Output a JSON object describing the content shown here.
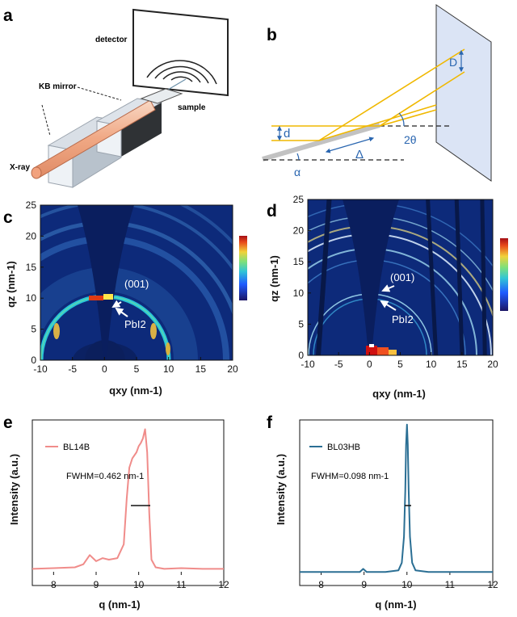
{
  "panel_a": {
    "label": "a",
    "detector": "detector",
    "kb_mirror": "KB mirror",
    "sample": "sample",
    "xray": "X-ray"
  },
  "panel_b": {
    "label": "b",
    "D": "D",
    "d": "d",
    "delta": "Δ",
    "two_theta": "2θ",
    "alpha": "α"
  },
  "panel_c": {
    "label": "c",
    "ylabel": "qz (nm-1)",
    "xlabel": "qxy (nm-1)",
    "x_ticks": [
      "-10",
      "-5",
      "0",
      "5",
      "10",
      "15",
      "20"
    ],
    "y_ticks": [
      "0",
      "5",
      "10",
      "15",
      "20",
      "25"
    ],
    "annot_001": "(001)",
    "annot_pbi2": "PbI2"
  },
  "panel_d": {
    "label": "d",
    "ylabel": "qz (nm-1)",
    "xlabel": "qxy (nm-1)",
    "x_ticks": [
      "-10",
      "-5",
      "0",
      "5",
      "10",
      "15",
      "20"
    ],
    "y_ticks": [
      "0",
      "5",
      "10",
      "15",
      "20",
      "25"
    ],
    "annot_001": "(001)",
    "annot_pbi2": "PbI2"
  },
  "chart_data": [
    {
      "panel": "e",
      "type": "line",
      "xlabel": "q (nm-1)",
      "ylabel": "Intensity (a.u.)",
      "xlim": [
        7.5,
        12
      ],
      "x_ticks": [
        "8",
        "9",
        "10",
        "11",
        "12"
      ],
      "legend": "top-left",
      "annotation": "FWHM=0.462 nm-1",
      "series": [
        {
          "name": "BL14B",
          "color": "#f08c8a",
          "x": [
            7.5,
            8.0,
            8.5,
            8.7,
            8.85,
            9.0,
            9.15,
            9.3,
            9.5,
            9.65,
            9.72,
            9.78,
            9.85,
            9.95,
            10.0,
            10.05,
            10.1,
            10.15,
            10.2,
            10.25,
            10.3,
            10.4,
            10.6,
            11.0,
            11.5,
            12.0
          ],
          "y": [
            0.04,
            0.045,
            0.05,
            0.07,
            0.13,
            0.09,
            0.11,
            0.1,
            0.11,
            0.2,
            0.5,
            0.7,
            0.76,
            0.8,
            0.84,
            0.86,
            0.89,
            0.95,
            0.8,
            0.4,
            0.1,
            0.05,
            0.04,
            0.045,
            0.04,
            0.04
          ]
        }
      ]
    },
    {
      "panel": "f",
      "type": "line",
      "xlabel": "q (nm-1)",
      "ylabel": "Intensity (a.u.)",
      "xlim": [
        7.5,
        12
      ],
      "x_ticks": [
        "8",
        "9",
        "10",
        "11",
        "12"
      ],
      "legend": "top-left",
      "annotation": "FWHM=0.098 nm-1",
      "series": [
        {
          "name": "BL03HB",
          "color": "#2b6f94",
          "x": [
            7.5,
            8.5,
            8.9,
            8.98,
            9.06,
            9.5,
            9.8,
            9.88,
            9.93,
            9.96,
            9.98,
            10.0,
            10.02,
            10.04,
            10.07,
            10.12,
            10.2,
            10.5,
            11.0,
            12.0
          ],
          "y": [
            0.02,
            0.02,
            0.02,
            0.04,
            0.02,
            0.02,
            0.03,
            0.08,
            0.25,
            0.55,
            0.85,
            0.98,
            0.85,
            0.55,
            0.25,
            0.08,
            0.03,
            0.02,
            0.02,
            0.02
          ]
        }
      ]
    }
  ],
  "colors": {
    "pattern_bg": "#0d2a7a",
    "beam": "#f1b89a",
    "ray": "#f0b800",
    "detector_plane": "#dbe4f5"
  }
}
